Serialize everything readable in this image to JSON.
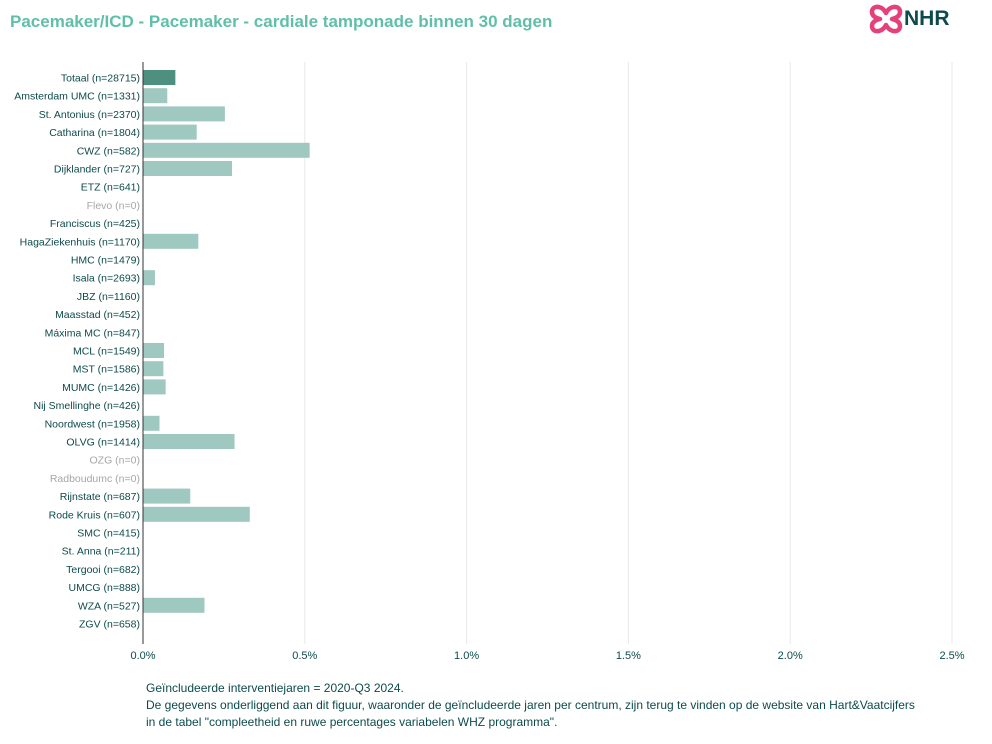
{
  "header": {
    "title": "Pacemaker/ICD - Pacemaker - cardiale tamponade binnen 30 dagen",
    "logo_text": "NHR"
  },
  "colors": {
    "title": "#5fbfa8",
    "total_bar": "#4f8f80",
    "center_bar": "#9fc8c0",
    "label": "#0d4a4c",
    "label_muted": "#a6a6a6",
    "logo_pink": "#e4407b",
    "logo_text": "#0d4a4c"
  },
  "chart_data": {
    "type": "bar",
    "orientation": "horizontal",
    "xlim": [
      0,
      2.5
    ],
    "x_ticks": [
      "0.0%",
      "0.5%",
      "1.0%",
      "1.5%",
      "2.0%",
      "2.5%"
    ],
    "x_tick_values": [
      0,
      0.5,
      1.0,
      1.5,
      2.0,
      2.5
    ],
    "grid": "vertical",
    "categories": [
      "Totaal (n=28715)",
      "Amsterdam UMC (n=1331)",
      "St. Antonius (n=2370)",
      "Catharina (n=1804)",
      "CWZ (n=582)",
      "Dijklander (n=727)",
      "ETZ (n=641)",
      "Flevo (n=0)",
      "Franciscus (n=425)",
      "HagaZiekenhuis (n=1170)",
      "HMC (n=1479)",
      "Isala (n=2693)",
      "JBZ (n=1160)",
      "Maasstad (n=452)",
      "Máxima MC (n=847)",
      "MCL (n=1549)",
      "MST (n=1586)",
      "MUMC (n=1426)",
      "Nij Smellinghe (n=426)",
      "Noordwest (n=1958)",
      "OLVG (n=1414)",
      "OZG (n=0)",
      "Radboudumc (n=0)",
      "Rijnstate (n=687)",
      "Rode Kruis (n=607)",
      "SMC (n=415)",
      "St. Anna (n=211)",
      "Tergooi (n=682)",
      "UMCG (n=888)",
      "WZA (n=527)",
      "ZGV (n=658)"
    ],
    "values": [
      0.1,
      0.075,
      0.253,
      0.166,
      0.515,
      0.275,
      0,
      0,
      0,
      0.171,
      0,
      0.037,
      0,
      0,
      0,
      0.065,
      0.063,
      0.07,
      0,
      0.051,
      0.283,
      0,
      0,
      0.146,
      0.33,
      0,
      0,
      0,
      0,
      0.19,
      0
    ],
    "muted": [
      false,
      false,
      false,
      false,
      false,
      false,
      false,
      true,
      false,
      false,
      false,
      false,
      false,
      false,
      false,
      false,
      false,
      false,
      false,
      false,
      false,
      true,
      true,
      false,
      false,
      false,
      false,
      false,
      false,
      false,
      false
    ],
    "highlight_index": 0
  },
  "footnote": {
    "line1": "Geïncludeerde interventiejaren = 2020-Q3 2024.",
    "line2": "De gegevens onderliggend aan dit figuur, waaronder de geïncludeerde jaren per centrum, zijn terug te vinden op de website van Hart&Vaatcijfers",
    "line3": "in de tabel \"compleetheid en ruwe percentages variabelen WHZ programma\"."
  }
}
